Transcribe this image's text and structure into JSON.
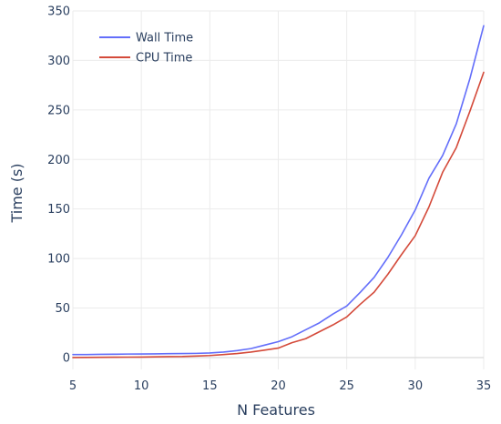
{
  "chart_data": {
    "type": "line",
    "title": "",
    "xlabel": "N Features",
    "ylabel": "Time (s)",
    "xlim": [
      5,
      35
    ],
    "ylim": [
      -12,
      350
    ],
    "x_ticks": [
      5,
      10,
      15,
      20,
      25,
      30,
      35
    ],
    "y_ticks": [
      0,
      50,
      100,
      150,
      200,
      250,
      300,
      350
    ],
    "grid": true,
    "legend_position": "top-left",
    "x": [
      5,
      6,
      7,
      8,
      9,
      10,
      11,
      12,
      13,
      14,
      15,
      16,
      17,
      18,
      19,
      20,
      21,
      22,
      23,
      24,
      25,
      26,
      27,
      28,
      29,
      30,
      31,
      32,
      33,
      34,
      35
    ],
    "series": [
      {
        "name": "Wall Time",
        "color": "#636efa",
        "values": [
          3,
          3,
          3.2,
          3.3,
          3.5,
          3.6,
          3.7,
          3.9,
          4,
          4.2,
          4.6,
          5.5,
          7,
          9,
          12.5,
          16,
          21,
          28,
          35,
          44,
          52,
          66,
          81,
          101,
          124,
          149,
          181,
          204,
          236,
          282,
          335
        ]
      },
      {
        "name": "CPU Time",
        "color": "#d44a3a",
        "values": [
          0,
          0.1,
          0.2,
          0.3,
          0.4,
          0.5,
          0.7,
          0.9,
          1,
          1.5,
          2,
          3,
          4,
          5.5,
          7.5,
          9.5,
          15,
          19,
          26,
          33,
          41,
          54,
          66,
          84,
          104,
          123,
          152,
          187,
          212,
          249,
          288
        ]
      }
    ]
  }
}
